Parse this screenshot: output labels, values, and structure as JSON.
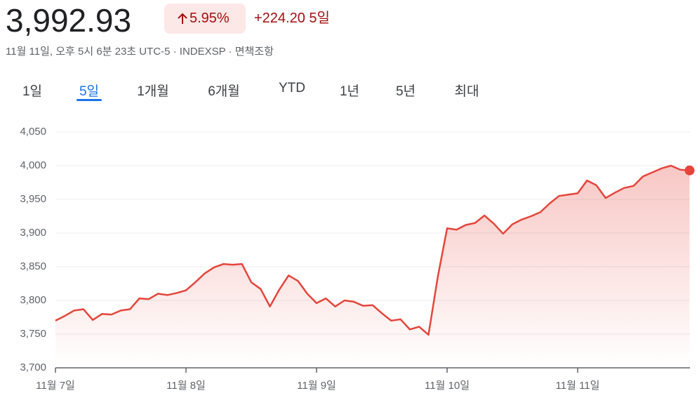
{
  "header": {
    "price": "3,992.93",
    "change_percent": "5.95%",
    "change": "+224.20",
    "period": "5일",
    "subtitle": "11월 11일, 오후 5시 6분 23초 UTC-5 · INDEXSP · 면책조항"
  },
  "tabs": {
    "items": [
      "1일",
      "5일",
      "1개월",
      "6개월",
      "YTD",
      "1년",
      "5년",
      "최대"
    ],
    "selected": 1
  },
  "chart_data": {
    "type": "line",
    "categories": [
      "11월 7일",
      null,
      null,
      null,
      null,
      null,
      null,
      null,
      null,
      null,
      null,
      null,
      null,
      null,
      "11월 8일",
      null,
      null,
      null,
      null,
      null,
      null,
      null,
      null,
      null,
      null,
      null,
      null,
      null,
      "11월 9일",
      null,
      null,
      null,
      null,
      null,
      null,
      null,
      null,
      null,
      null,
      null,
      null,
      null,
      "11월 10일",
      null,
      null,
      null,
      null,
      null,
      null,
      null,
      null,
      null,
      null,
      null,
      null,
      null,
      "11월 11일",
      null,
      null,
      null,
      null,
      null,
      null,
      null,
      null,
      null,
      null,
      null,
      null
    ],
    "values": [
      3770,
      3777,
      3785,
      3787,
      3771,
      3780,
      3779,
      3785,
      3787,
      3803,
      3802,
      3810,
      3808,
      3811,
      3815,
      3827,
      3840,
      3849,
      3854,
      3853,
      3854,
      3827,
      3817,
      3791,
      3816,
      3837,
      3829,
      3810,
      3796,
      3803,
      3791,
      3800,
      3798,
      3792,
      3793,
      3781,
      3770,
      3772,
      3757,
      3761,
      3749,
      3835,
      3907,
      3905,
      3912,
      3915,
      3926,
      3914,
      3899,
      3913,
      3920,
      3925,
      3931,
      3944,
      3955,
      3957,
      3959,
      3978,
      3971,
      3952,
      3960,
      3967,
      3970,
      3984,
      3990,
      3996,
      4000,
      3994,
      3992.93
    ],
    "color": "#e5453b",
    "ylim": [
      3700,
      4050
    ],
    "yticks": [
      {
        "value": 3700,
        "label": "3,700"
      },
      {
        "value": 3750,
        "label": "3,750"
      },
      {
        "value": 3800,
        "label": "3,800"
      },
      {
        "value": 3850,
        "label": "3,850"
      },
      {
        "value": 3900,
        "label": "3,900"
      },
      {
        "value": 3950,
        "label": "3,950"
      },
      {
        "value": 4000,
        "label": "4,000"
      },
      {
        "value": 4050,
        "label": "4,050"
      }
    ],
    "grid": true
  }
}
